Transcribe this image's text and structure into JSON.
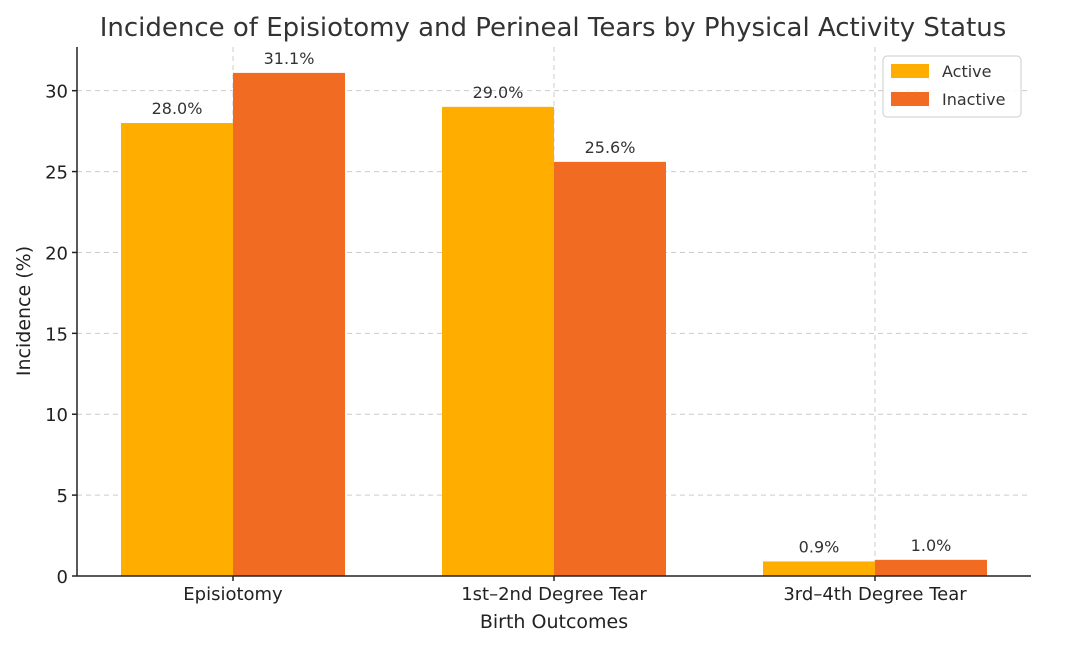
{
  "chart_data": {
    "type": "bar",
    "title": "Incidence of Episiotomy and Perineal Tears by Physical Activity Status",
    "xlabel": "Birth Outcomes",
    "ylabel": "Incidence (%)",
    "categories": [
      "Episiotomy",
      "1st–2nd Degree Tear",
      "3rd–4th Degree Tear"
    ],
    "series": [
      {
        "name": "Active",
        "color": "#FFAE00",
        "values": [
          28.0,
          29.0,
          0.9
        ],
        "labels": [
          "28.0%",
          "29.0%",
          "0.9%"
        ]
      },
      {
        "name": "Inactive",
        "color": "#F26B22",
        "values": [
          31.1,
          25.6,
          1.0
        ],
        "labels": [
          "31.1%",
          "25.6%",
          "1.0%"
        ]
      }
    ],
    "ylim": [
      0,
      32.7
    ],
    "yticks": [
      0,
      5,
      10,
      15,
      20,
      25,
      30
    ],
    "grid": true,
    "legend": "top-right"
  }
}
